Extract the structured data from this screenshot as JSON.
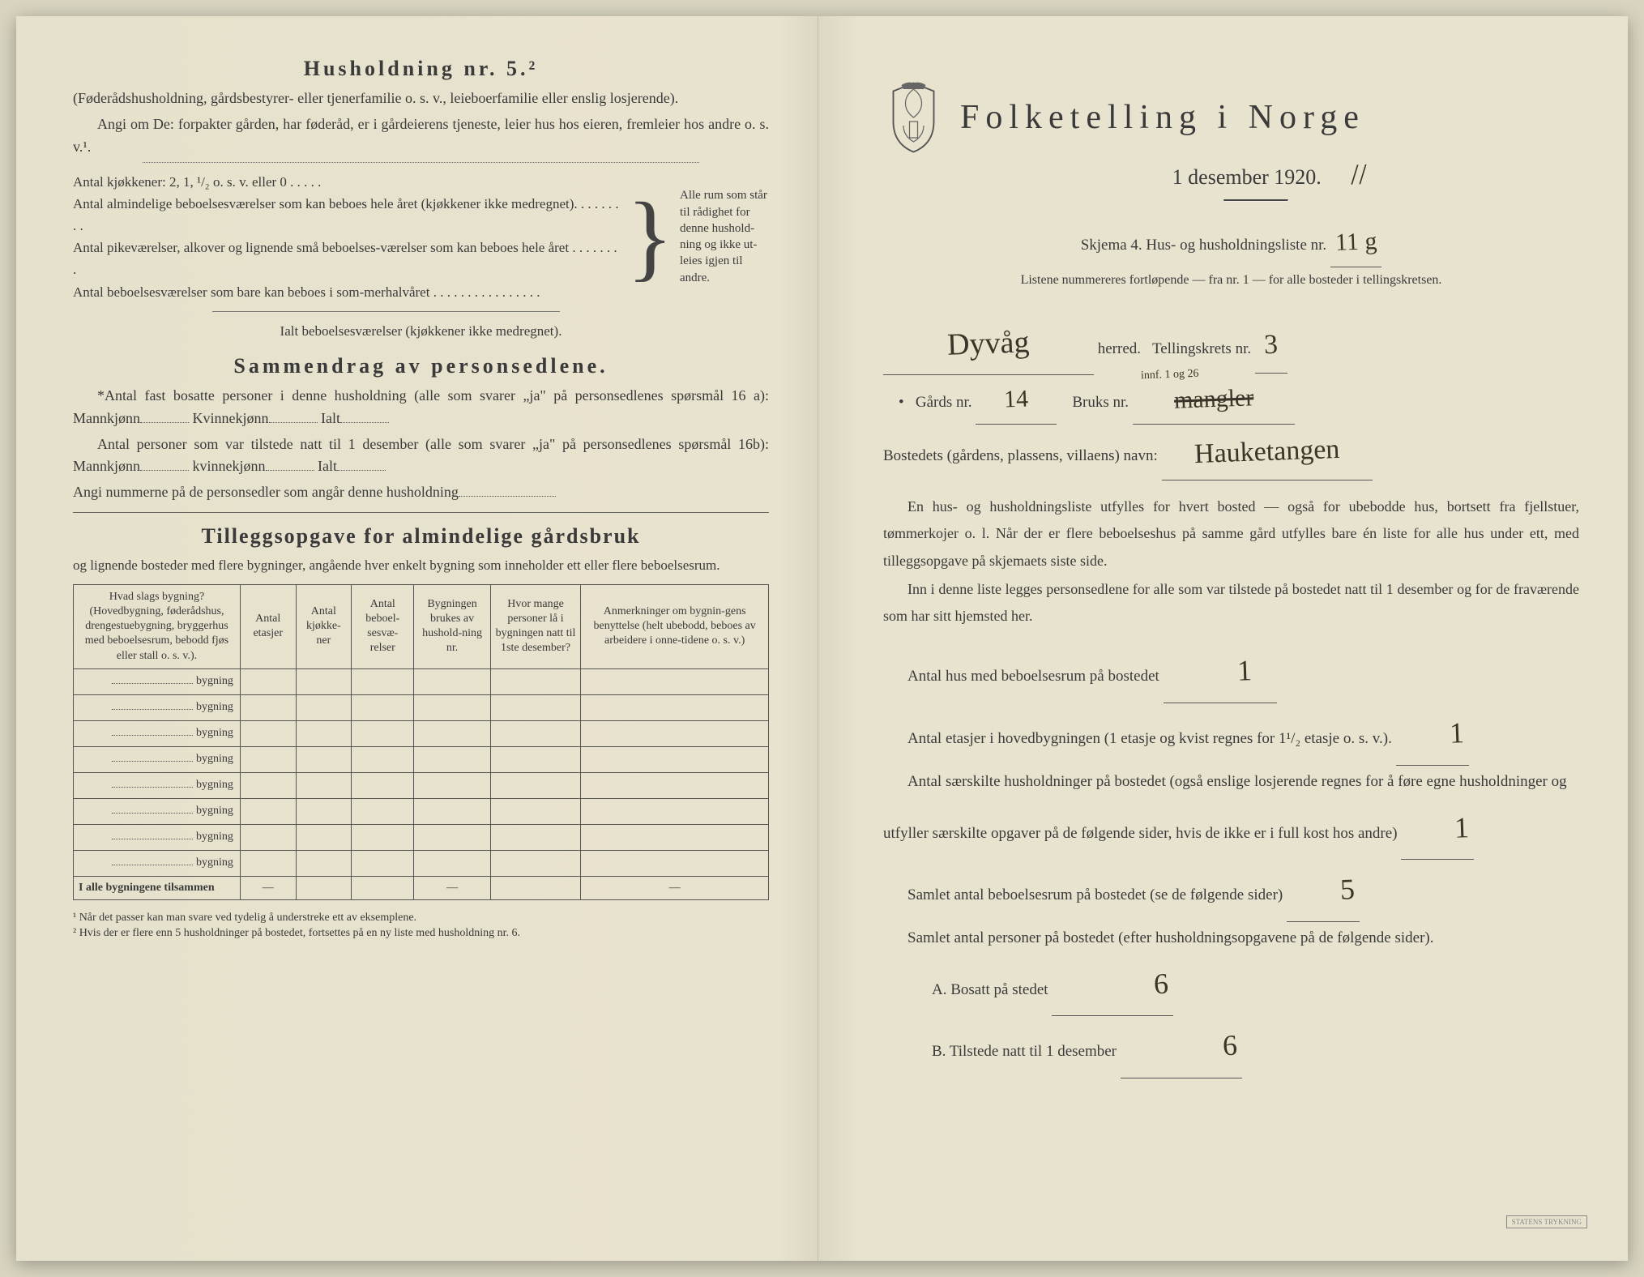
{
  "left": {
    "h5_title": "Husholdning nr. 5.²",
    "h5_sub": "(Føderådshusholdning, gårdsbestyrer- eller tjenerfamilie o. s. v., leieboerfamilie eller enslig losjerende).",
    "h5_prompt": "Angi om De: forpakter gården, har føderåd, er i gårdeierens tjeneste, leier hus hos eieren, fremleier hos andre o. s. v.¹.",
    "brace_lines": [
      "Antal kjøkkener: 2, 1, ¹/₂ o. s. v. eller 0 . . . . .",
      "Antal almindelige beboelsesværelser som kan beboes hele året (kjøkkener ikke medregnet). . . . . . . . .",
      "Antal pikeværelser, alkover og lignende små beboelses-værelser som kan beboes hele året . . . . . . . .",
      "Antal beboelsesværelser som bare kan beboes i som-merhalvåret . . . . . . . . . . . . . . . ."
    ],
    "brace_note": "Alle rum som står til rådighet for denne hushold-ning og ikke ut-leies igjen til andre.",
    "ialt_line": "Ialt beboelsesværelser (kjøkkener ikke medregnet).",
    "sammen_title": "Sammendrag av personsedlene.",
    "sammen_p1a": "*Antal fast bosatte personer i denne husholdning (alle som svarer „ja\" på personsedlenes spørsmål 16 a): Mannkjønn",
    "sammen_kvinne": "Kvinnekjønn",
    "sammen_ialt": "Ialt",
    "sammen_p2": "Antal personer som var tilstede natt til 1 desember (alle som svarer „ja\" på personsedlenes spørsmål 16b): Mannkjønn",
    "sammen_kvinne2": "kvinnekjønn",
    "sammen_p3": "Angi nummerne på de personsedler som angår denne husholdning",
    "tillegg_title": "Tilleggsopgave for almindelige gårdsbruk",
    "tillegg_sub": "og lignende bosteder med flere bygninger, angående hver enkelt bygning som inneholder ett eller flere beboelsesrum.",
    "table": {
      "headers": [
        "Hvad slags bygning?\n(Hovedbygning, føderådshus, drengestuebygning, bryggerhus med beboelsesrum, bebodd fjøs eller stall o. s. v.).",
        "Antal etasjer",
        "Antal kjøkke-ner",
        "Antal beboel-sesvæ-relser",
        "Bygningen brukes av hushold-ning nr.",
        "Hvor mange personer lå i bygningen natt til 1ste desember?",
        "Anmerkninger om bygnin-gens benyttelse (helt ubebodd, beboes av arbeidere i onne-tidene o. s. v.)"
      ],
      "row_label": "bygning",
      "row_count": 8,
      "total_label": "I alle bygningene tilsammen"
    },
    "footnote1": "¹ Når det passer kan man svare ved tydelig å understreke ett av eksemplene.",
    "footnote2": "² Hvis der er flere enn 5 husholdninger på bostedet, fortsettes på en ny liste med husholdning nr. 6."
  },
  "right": {
    "main_title": "Folketelling i Norge",
    "subtitle": "1 desember 1920.",
    "skjema_line": "Skjema 4.  Hus- og husholdningsliste nr.",
    "skjema_val": "11 g",
    "listene": "Listene nummereres fortløpende — fra nr. 1 — for alle bosteder i tellingskretsen.",
    "herred_label": "herred.",
    "herred_val": "Dyvåg",
    "krets_label": "Tellingskrets nr.",
    "krets_val": "3",
    "gards_label": "Gårds nr.",
    "gards_val": "14",
    "bruks_label": "Bruks nr.",
    "bruks_val": "mangler",
    "bruks_note": "innf. 1 og 26",
    "navn_label": "Bostedets (gårdens, plassens, villaens) navn:",
    "navn_val": "Hauketangen",
    "body1": "En hus- og husholdningsliste utfylles for hvert bosted — også for ubebodde hus, bortsett fra fjellstuer, tømmerkojer o. l. Når der er flere beboelseshus på samme gård utfylles bare én liste for alle hus under ett, med tilleggsopgave på skjemaets siste side.",
    "body2": "Inn i denne liste legges personsedlene for alle som var tilstede på bostedet natt til 1 desember og for de fraværende som har sitt hjemsted her.",
    "q1": "Antal hus med beboelsesrum på bostedet",
    "q1_val": "1",
    "q2": "Antal etasjer i hovedbygningen (1 etasje og kvist regnes for 1¹/₂ etasje o. s. v.).",
    "q2_val": "1",
    "q3": "Antal særskilte husholdninger på bostedet (også enslige losjerende regnes for å føre egne husholdninger og utfyller særskilte opgaver på de følgende sider, hvis de ikke er i full kost hos andre)",
    "q3_val": "1",
    "q4": "Samlet antal beboelsesrum på bostedet (se de følgende sider)",
    "q4_val": "5",
    "q5": "Samlet antal personer på bostedet (efter husholdningsopgavene på de følgende sider).",
    "q5a": "A. Bosatt på stedet",
    "q5a_val": "6",
    "q5b": "B. Tilstede natt til 1 desember",
    "q5b_val": "6",
    "stamp": "STATENS TRYKNING"
  },
  "colors": {
    "paper": "#e8e3ce",
    "ink": "#3a3a3a",
    "handwriting": "#3a3528"
  }
}
